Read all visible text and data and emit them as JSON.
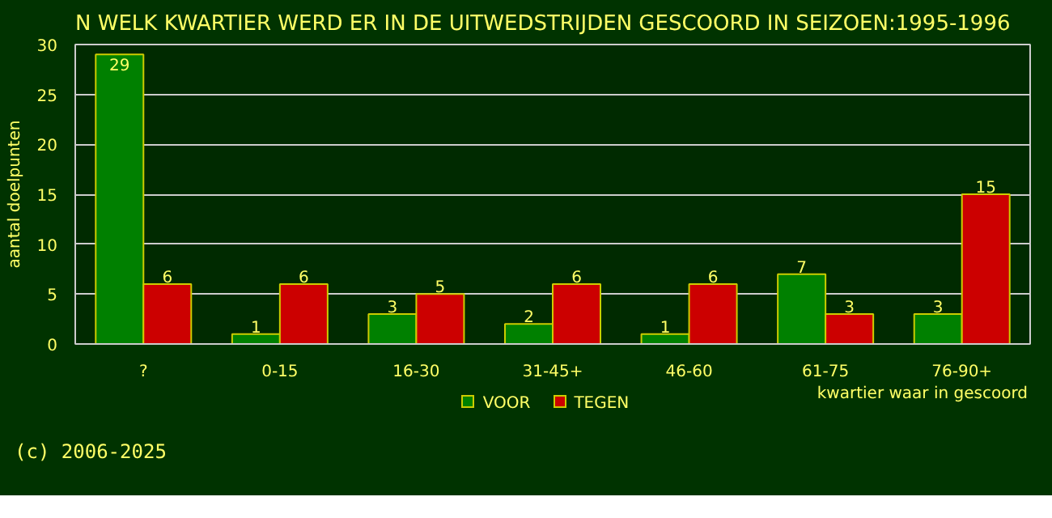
{
  "chart_data": {
    "type": "bar",
    "title": "N WELK KWARTIER WERD ER IN DE UITWEDSTRIJDEN GESCOORD IN SEIZOEN:1995-1996",
    "xlabel": "kwartier waar in gescoord",
    "ylabel": "aantal doelpunten",
    "categories": [
      "?",
      "0-15",
      "16-30",
      "31-45+",
      "46-60",
      "61-75",
      "76-90+"
    ],
    "series": [
      {
        "name": "VOOR",
        "color": "#008000",
        "values": [
          29,
          1,
          3,
          2,
          1,
          7,
          3
        ]
      },
      {
        "name": "TEGEN",
        "color": "#cc0000",
        "values": [
          6,
          6,
          5,
          6,
          6,
          3,
          15
        ]
      }
    ],
    "ylim": [
      0,
      30
    ],
    "yticks": [
      0,
      5,
      10,
      15,
      20,
      25,
      30
    ],
    "grid": "y",
    "legend": "bottom",
    "data_labels": true,
    "annotations": [
      "(c) 2006-2025"
    ]
  }
}
